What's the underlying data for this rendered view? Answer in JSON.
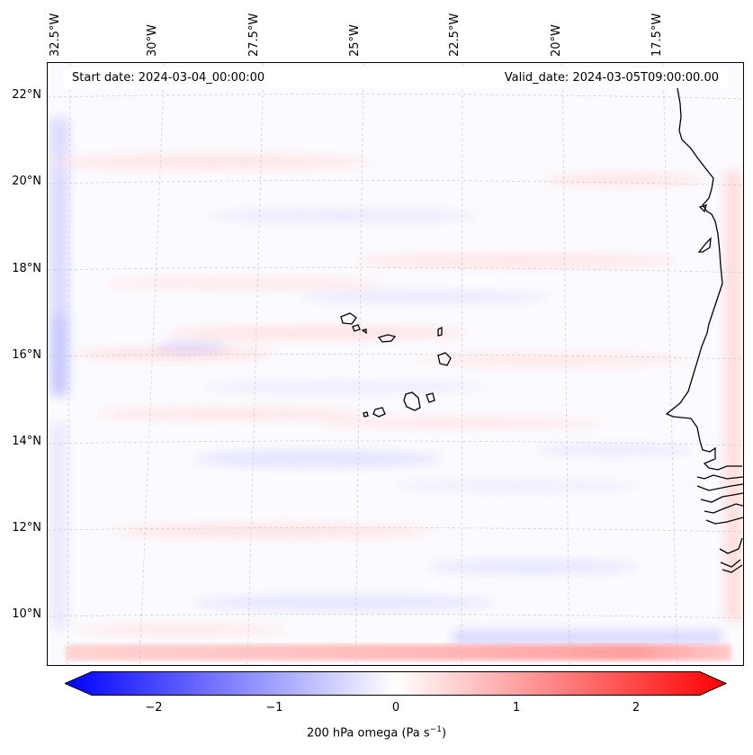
{
  "map": {
    "start_date": "Start date: 2024-03-04_00:00:00",
    "valid_date": "Valid_date: 2024-03-05T09:00:00.00",
    "lon_labels": [
      "32.5°W",
      "30°W",
      "27.5°W",
      "25°W",
      "22.5°W",
      "20°W",
      "17.5°W"
    ],
    "lat_labels": [
      "22°N",
      "20°N",
      "18°N",
      "16°N",
      "14°N",
      "12°N",
      "10°N"
    ],
    "variable": "200 hPa omega",
    "colormap": "bwr",
    "colors": {
      "min": "#0000ff",
      "mid": "#ffffff",
      "max": "#ff0000",
      "coast": "#000000"
    }
  },
  "colorbar": {
    "label_text": "200 hPa omega (Pa s",
    "label_exp": "−1",
    "label_close": ")",
    "ticks": [
      "−2",
      "−1",
      "0",
      "1",
      "2"
    ],
    "range": [
      -2.7,
      2.7
    ],
    "extend": "both"
  }
}
